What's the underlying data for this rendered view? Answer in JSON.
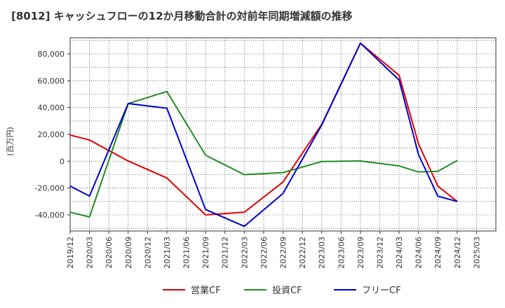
{
  "chart_data": {
    "type": "line",
    "title": "[8012]  キャッシュフローの12か月移動合計の対前年同期増減額の推移",
    "ylabel": "(百万円)",
    "xlabel": "",
    "ylim": [
      -52000,
      92000
    ],
    "yticks": [
      -40000,
      -20000,
      0,
      20000,
      40000,
      60000,
      80000
    ],
    "ytick_labels": [
      "-40,000",
      "-20,000",
      "0",
      "20,000",
      "40,000",
      "60,000",
      "80,000"
    ],
    "categories": [
      "2019/12",
      "2020/03",
      "2020/06",
      "2020/09",
      "2020/12",
      "2021/03",
      "2021/06",
      "2021/09",
      "2021/12",
      "2022/03",
      "2022/06",
      "2022/09",
      "2022/12",
      "2023/03",
      "2023/06",
      "2023/09",
      "2023/12",
      "2024/03",
      "2024/06",
      "2024/09",
      "2024/12",
      "2025/03"
    ],
    "grid": true,
    "legend_position": "bottom",
    "series": [
      {
        "name": "営業CF",
        "color": "#e00000",
        "values": [
          19500,
          15800,
          null,
          200,
          null,
          -12500,
          null,
          -40000,
          null,
          -38000,
          null,
          -15500,
          null,
          27500,
          null,
          88000,
          null,
          64000,
          13000,
          -18500,
          -30000,
          null
        ]
      },
      {
        "name": "投資CF",
        "color": "#228b22",
        "values": [
          -38000,
          -41500,
          null,
          43000,
          null,
          52000,
          null,
          4500,
          null,
          -10000,
          null,
          -8500,
          null,
          -200,
          null,
          200,
          null,
          -3500,
          -8000,
          -7500,
          500,
          null
        ]
      },
      {
        "name": "フリーCF",
        "color": "#0000cc",
        "values": [
          -18500,
          -26000,
          null,
          43000,
          null,
          39500,
          null,
          -36000,
          null,
          -48500,
          null,
          -24000,
          null,
          27000,
          null,
          88000,
          null,
          60500,
          5000,
          -26000,
          -30000,
          null
        ]
      }
    ]
  }
}
